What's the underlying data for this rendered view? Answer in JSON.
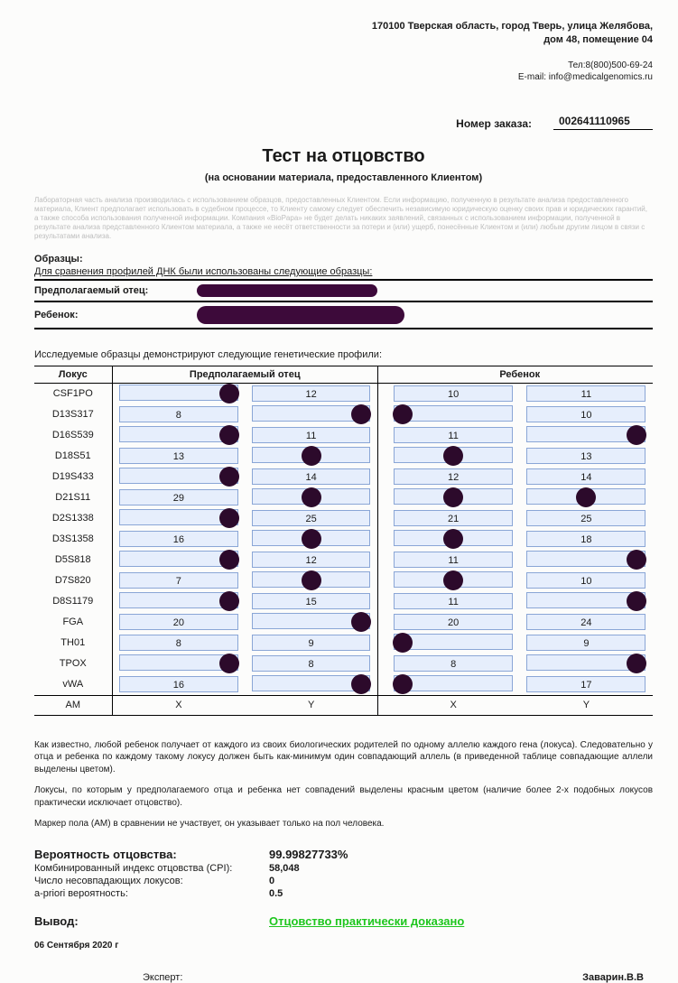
{
  "header": {
    "address_line1": "170100 Тверская область, город Тверь, улица Желябова,",
    "address_line2": "дом 48, помещение 04",
    "tel_label": "Тел:",
    "tel": "8(800)500-69-24",
    "email_label": "E-mail:",
    "email": "info@medicalgenomics.ru"
  },
  "order": {
    "label": "Номер заказа:",
    "number": "002641110965"
  },
  "title": "Тест на отцовство",
  "subtitle": "(на основании материала, предоставленного Клиентом)",
  "disclaimer": "Лабораторная часть анализа производилась с использованием образцов, предоставленных Клиентом. Если информацию, полученную в результате анализа предоставленного материала, Клиент предполагает использовать в судебном процессе, то Клиенту самому следует обеспечить независимую юридическую оценку своих прав и юридических гарантий, а также способа использования полученной информации. Компания «BioPapa» не будет делать никаких заявлений, связанных с использованием информации, полученной в результате анализа представленного Клиентом материала, а также не несёт ответственности за потери и (или) ущерб, понесённые Клиентом и (или) любым другим лицом в связи с результатами анализа.",
  "samples": {
    "heading": "Образцы:",
    "sub": "Для сравнения профилей ДНК были использованы следующие образцы:",
    "father_label": "Предполагаемый отец:",
    "child_label": "Ребенок:"
  },
  "profiles_intro": "Исследуемые образцы демонстрируют следующие генетические профили:",
  "table": {
    "col_locus": "Локус",
    "col_father": "Предполагаемый отец",
    "col_child": "Ребенок",
    "am_label": "AM",
    "am_father": [
      "X",
      "Y"
    ],
    "am_child": [
      "X",
      "Y"
    ],
    "allele_border": "#8aa6d6",
    "allele_bg": "#e6eefc",
    "dot_color": "#2c0a2b",
    "rows": [
      {
        "locus": "CSF1PO",
        "f": [
          {
            "v": "",
            "dot": "r"
          },
          {
            "v": "12"
          }
        ],
        "c": [
          {
            "v": "10"
          },
          {
            "v": "11"
          }
        ]
      },
      {
        "locus": "D13S317",
        "f": [
          {
            "v": "8"
          },
          {
            "v": "",
            "dot": "r"
          }
        ],
        "c": [
          {
            "v": "",
            "dot": "l"
          },
          {
            "v": "10"
          }
        ]
      },
      {
        "locus": "D16S539",
        "f": [
          {
            "v": "",
            "dot": "r"
          },
          {
            "v": "11"
          }
        ],
        "c": [
          {
            "v": "11"
          },
          {
            "v": "",
            "dot": "r"
          }
        ]
      },
      {
        "locus": "D18S51",
        "f": [
          {
            "v": "13"
          },
          {
            "v": "",
            "dot": "c"
          }
        ],
        "c": [
          {
            "v": "",
            "dot": "c"
          },
          {
            "v": "13"
          }
        ]
      },
      {
        "locus": "D19S433",
        "f": [
          {
            "v": "",
            "dot": "r"
          },
          {
            "v": "14"
          }
        ],
        "c": [
          {
            "v": "12"
          },
          {
            "v": "14"
          }
        ]
      },
      {
        "locus": "D21S11",
        "f": [
          {
            "v": "29"
          },
          {
            "v": "",
            "dot": "c"
          }
        ],
        "c": [
          {
            "v": "",
            "dot": "c"
          },
          {
            "v": "",
            "dot": "c"
          }
        ]
      },
      {
        "locus": "D2S1338",
        "f": [
          {
            "v": "",
            "dot": "r"
          },
          {
            "v": "25"
          }
        ],
        "c": [
          {
            "v": "21"
          },
          {
            "v": "25"
          }
        ]
      },
      {
        "locus": "D3S1358",
        "f": [
          {
            "v": "16"
          },
          {
            "v": "",
            "dot": "c"
          }
        ],
        "c": [
          {
            "v": "",
            "dot": "c"
          },
          {
            "v": "18"
          }
        ]
      },
      {
        "locus": "D5S818",
        "f": [
          {
            "v": "",
            "dot": "r"
          },
          {
            "v": "12"
          }
        ],
        "c": [
          {
            "v": "11"
          },
          {
            "v": "",
            "dot": "r"
          }
        ]
      },
      {
        "locus": "D7S820",
        "f": [
          {
            "v": "7"
          },
          {
            "v": "",
            "dot": "c"
          }
        ],
        "c": [
          {
            "v": "",
            "dot": "c"
          },
          {
            "v": "10"
          }
        ]
      },
      {
        "locus": "D8S1179",
        "f": [
          {
            "v": "",
            "dot": "r"
          },
          {
            "v": "15"
          }
        ],
        "c": [
          {
            "v": "11"
          },
          {
            "v": "",
            "dot": "r"
          }
        ]
      },
      {
        "locus": "FGA",
        "f": [
          {
            "v": "20"
          },
          {
            "v": "",
            "dot": "r"
          }
        ],
        "c": [
          {
            "v": "20"
          },
          {
            "v": "24"
          }
        ]
      },
      {
        "locus": "TH01",
        "f": [
          {
            "v": "8"
          },
          {
            "v": "9"
          }
        ],
        "c": [
          {
            "v": "",
            "dot": "l"
          },
          {
            "v": "9"
          }
        ]
      },
      {
        "locus": "TPOX",
        "f": [
          {
            "v": "",
            "dot": "r"
          },
          {
            "v": "8"
          }
        ],
        "c": [
          {
            "v": "8"
          },
          {
            "v": "",
            "dot": "r"
          }
        ]
      },
      {
        "locus": "vWA",
        "f": [
          {
            "v": "16"
          },
          {
            "v": "",
            "dot": "r"
          }
        ],
        "c": [
          {
            "v": "",
            "dot": "l"
          },
          {
            "v": "17"
          }
        ]
      }
    ]
  },
  "explain": {
    "p1": "Как известно, любой ребенок получает от каждого из своих биологических родителей по одному аллелю каждого гена (локуса). Следовательно у отца и ребенка по каждому такому локусу должен быть как-минимум один совпадающий аллель (в приведенной таблице совпадающие аллели выделены цветом).",
    "p2": "Локусы, по которым у предполагаемого отца и ребенка нет совпадений выделены красным цветом (наличие более 2-х подобных локусов практически исключает отцовство).",
    "p3": "Маркер пола (АМ) в сравнении не участвует, он указывает только на пол человека."
  },
  "results": {
    "prob_label": "Вероятность отцовства:",
    "prob_value": "99.99827733%",
    "cpi_label": "Комбинированный индекс отцовства (CPI):",
    "cpi_value": "58,048",
    "mismatch_label": "Число несовпадающих локусов:",
    "mismatch_value": "0",
    "apriori_label": "a-priori вероятность:",
    "apriori_value": "0.5"
  },
  "conclusion": {
    "label": "Вывод:",
    "value": "Отцовство практически доказано",
    "color": "#1ec61e"
  },
  "date": "06 Сентября 2020 г",
  "sign": {
    "expert_label": "Эксперт:",
    "expert_name": "Заварин.В.В"
  }
}
